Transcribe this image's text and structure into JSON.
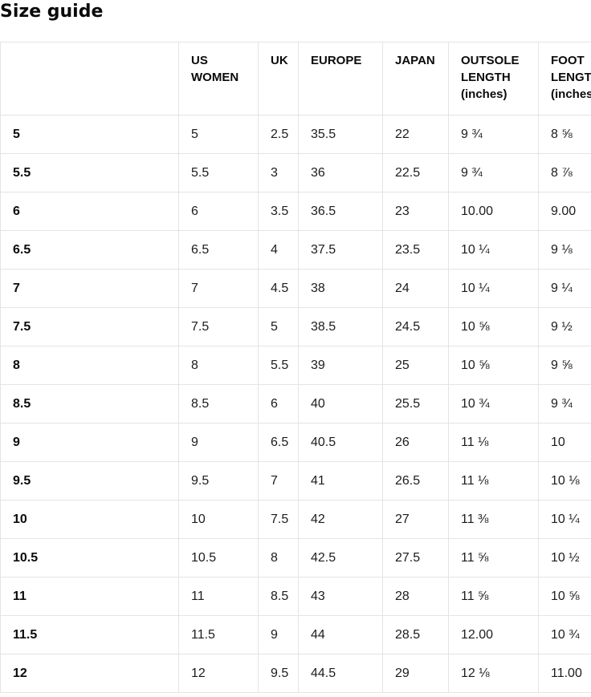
{
  "page": {
    "title": "Size guide"
  },
  "colors": {
    "text_strong": "#0a0a0a",
    "text_data": "#1c1c1c",
    "border": "#e4e4e4",
    "background": "#ffffff"
  },
  "table": {
    "columns": [
      {
        "key": "size",
        "label": ""
      },
      {
        "key": "us_women",
        "label": "US WOMEN"
      },
      {
        "key": "uk",
        "label": "UK"
      },
      {
        "key": "europe",
        "label": "EUROPE"
      },
      {
        "key": "japan",
        "label": "JAPAN"
      },
      {
        "key": "outsole_length",
        "label": "OUTSOLE LENGTH (inches)"
      },
      {
        "key": "foot_length",
        "label": "FOOT LENGTH (inches)"
      }
    ],
    "rows": [
      [
        "5",
        "5",
        "2.5",
        "35.5",
        "22",
        "9 ¾",
        "8 ⅝"
      ],
      [
        "5.5",
        "5.5",
        "3",
        "36",
        "22.5",
        "9 ¾",
        "8 ⅞"
      ],
      [
        "6",
        "6",
        "3.5",
        "36.5",
        "23",
        "10.00",
        "9.00"
      ],
      [
        "6.5",
        "6.5",
        "4",
        "37.5",
        "23.5",
        "10 ¼",
        "9 ⅛"
      ],
      [
        "7",
        "7",
        "4.5",
        "38",
        "24",
        "10 ¼",
        "9 ¼"
      ],
      [
        "7.5",
        "7.5",
        "5",
        "38.5",
        "24.5",
        "10 ⅝",
        "9 ½"
      ],
      [
        "8",
        "8",
        "5.5",
        "39",
        "25",
        "10 ⅝",
        "9 ⅝"
      ],
      [
        "8.5",
        "8.5",
        "6",
        "40",
        "25.5",
        "10 ¾",
        "9 ¾"
      ],
      [
        "9",
        "9",
        "6.5",
        "40.5",
        "26",
        "11 ⅛",
        "10"
      ],
      [
        "9.5",
        "9.5",
        "7",
        "41",
        "26.5",
        "11 ⅛",
        "10 ⅛"
      ],
      [
        "10",
        "10",
        "7.5",
        "42",
        "27",
        "11 ⅜",
        "10 ¼"
      ],
      [
        "10.5",
        "10.5",
        "8",
        "42.5",
        "27.5",
        "11 ⅝",
        "10 ½"
      ],
      [
        "11",
        "11",
        "8.5",
        "43",
        "28",
        "11 ⅝",
        "10 ⅝"
      ],
      [
        "11.5",
        "11.5",
        "9",
        "44",
        "28.5",
        "12.00",
        "10 ¾"
      ],
      [
        "12",
        "12",
        "9.5",
        "44.5",
        "29",
        "12 ⅛",
        "11.00"
      ]
    ]
  }
}
